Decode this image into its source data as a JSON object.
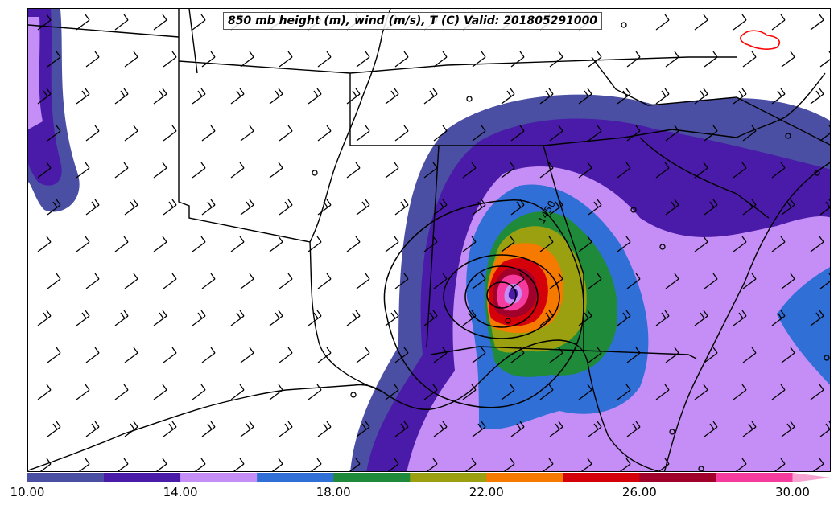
{
  "title": "850 mb height (m), wind (m/s), T (C) Valid: 201805291000",
  "colors": {
    "levels": [
      "#4b4fa3",
      "#4a1aa8",
      "#c58ef7",
      "#2f6fd6",
      "#1f8a3a",
      "#9aa010",
      "#f77a00",
      "#d4000a",
      "#a0002a",
      "#f53c9e",
      "#f7a3d2"
    ],
    "low_temp_contour": "#ff0000"
  },
  "colorbar": {
    "ticks": [
      "10.00",
      "14.00",
      "18.00",
      "22.00",
      "26.00",
      "30.00"
    ]
  },
  "contour_labels": {
    "height": "1450"
  },
  "legend_icons": [
    "wind-barb-icon",
    "calm-wind-circle-icon"
  ]
}
